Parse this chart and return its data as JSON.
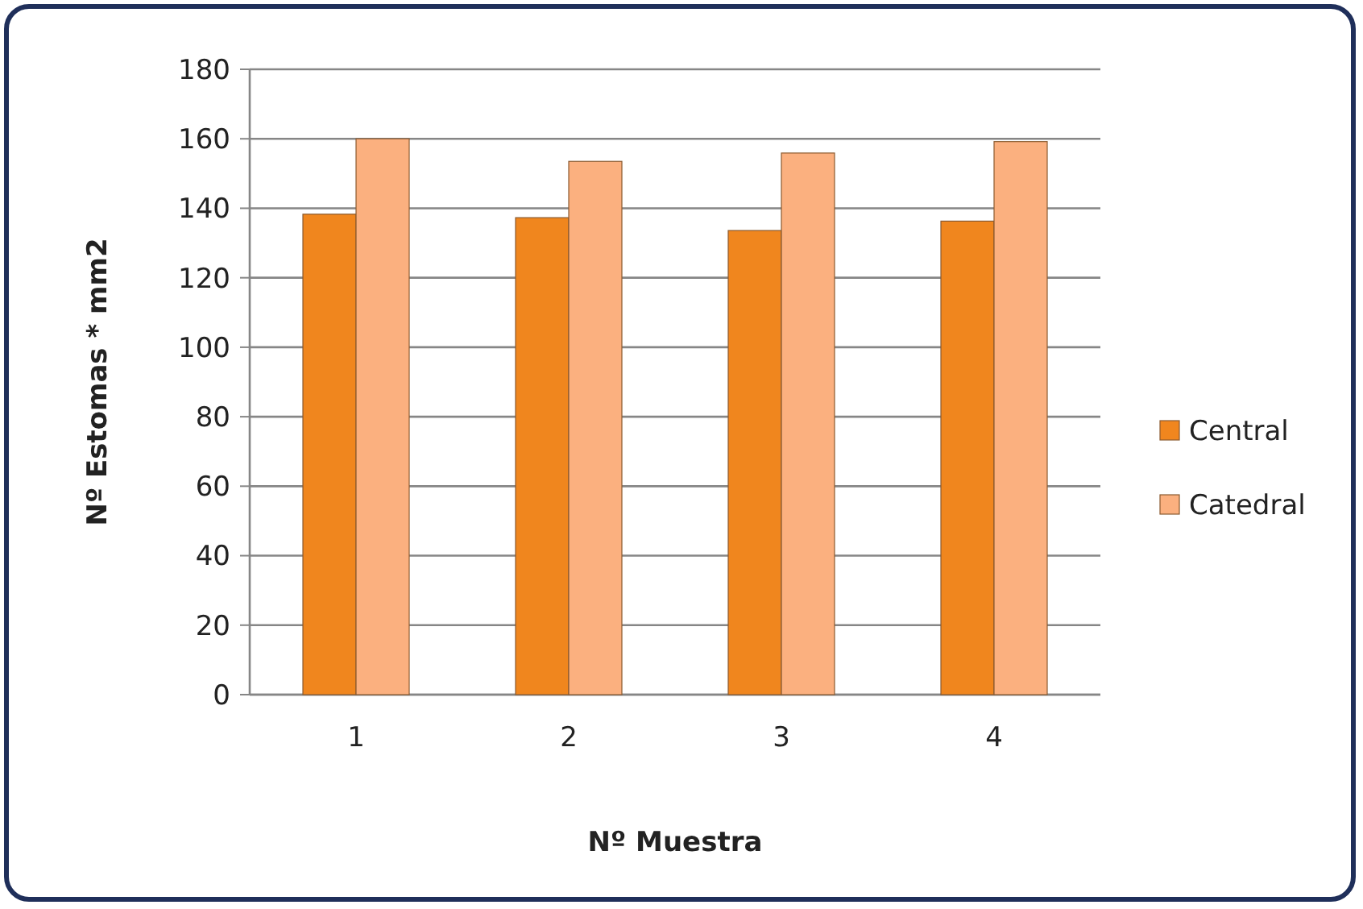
{
  "chart_data": {
    "type": "bar",
    "xlabel": "Nº Muestra",
    "ylabel": "Nº Estomas * mm2",
    "categories": [
      "1",
      "2",
      "3",
      "4"
    ],
    "series": [
      {
        "name": "Central",
        "color": "#f0861e",
        "values": [
          138.3,
          137.3,
          133.6,
          136.3
        ]
      },
      {
        "name": "Catedral",
        "color": "#fbb07f",
        "values": [
          160,
          153.5,
          155.9,
          159.2
        ]
      }
    ],
    "ylim": [
      0,
      180
    ],
    "yticks": [
      0,
      20,
      40,
      60,
      80,
      100,
      120,
      140,
      160,
      180
    ],
    "grid": "y",
    "legend": "right"
  }
}
